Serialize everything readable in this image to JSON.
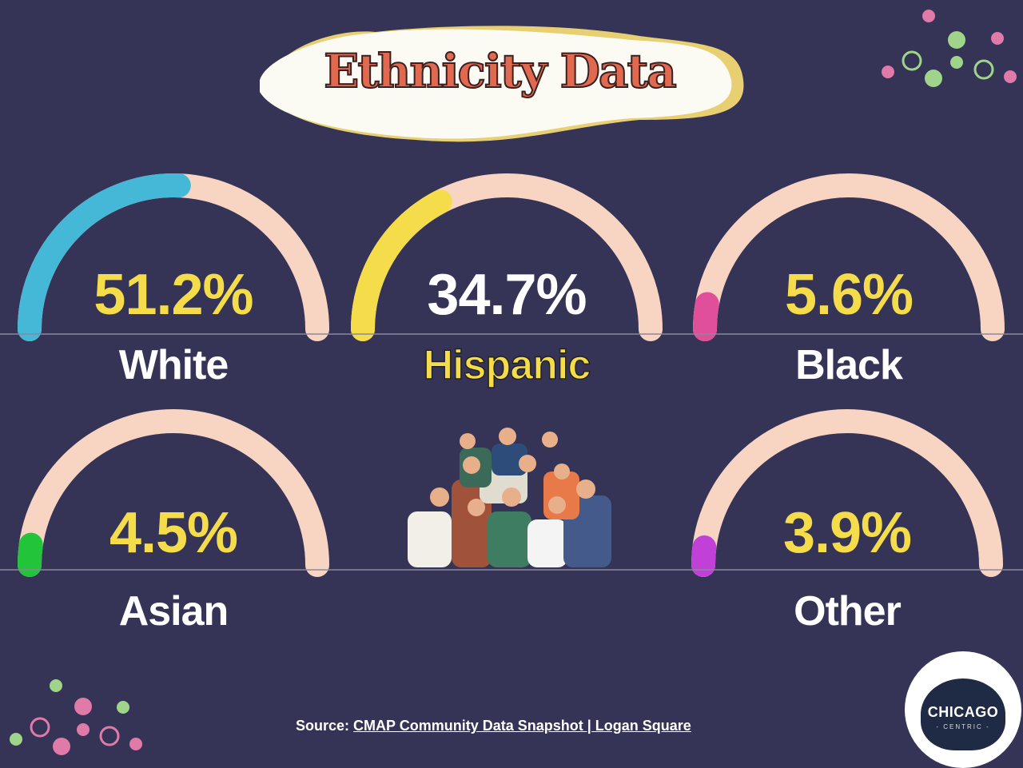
{
  "title": "Ethnicity Data",
  "chart_data": {
    "type": "gauge",
    "title": "Ethnicity Data",
    "unit": "%",
    "range": [
      0,
      100
    ],
    "items": [
      {
        "label": "White",
        "value": 51.2,
        "display": "51.2%",
        "fill_color": "#45b8d8",
        "value_color": "#f5dc4a",
        "label_color": "#ffffff"
      },
      {
        "label": "Hispanic",
        "value": 34.7,
        "display": "34.7%",
        "fill_color": "#f5dc4a",
        "value_color": "#ffffff",
        "label_color": "#f5dc4a"
      },
      {
        "label": "Black",
        "value": 5.6,
        "display": "5.6%",
        "fill_color": "#e0509a",
        "value_color": "#f5dc4a",
        "label_color": "#ffffff"
      },
      {
        "label": "Asian",
        "value": 4.5,
        "display": "4.5%",
        "fill_color": "#22c43a",
        "value_color": "#f5dc4a",
        "label_color": "#ffffff"
      },
      {
        "label": "Other",
        "value": 3.9,
        "display": "3.9%",
        "fill_color": "#c040d8",
        "value_color": "#f5dc4a",
        "label_color": "#ffffff"
      }
    ],
    "track_color": "#f8d5c2"
  },
  "source": {
    "prefix": "Source: ",
    "link": "CMAP Community Data Snapshot | Logan Square"
  },
  "logo": {
    "text": "CHICAGO",
    "sub": "- CENTRIC -"
  },
  "colors": {
    "background": "#363456",
    "title": "#e06a50",
    "accent": "#f5dc4a"
  }
}
